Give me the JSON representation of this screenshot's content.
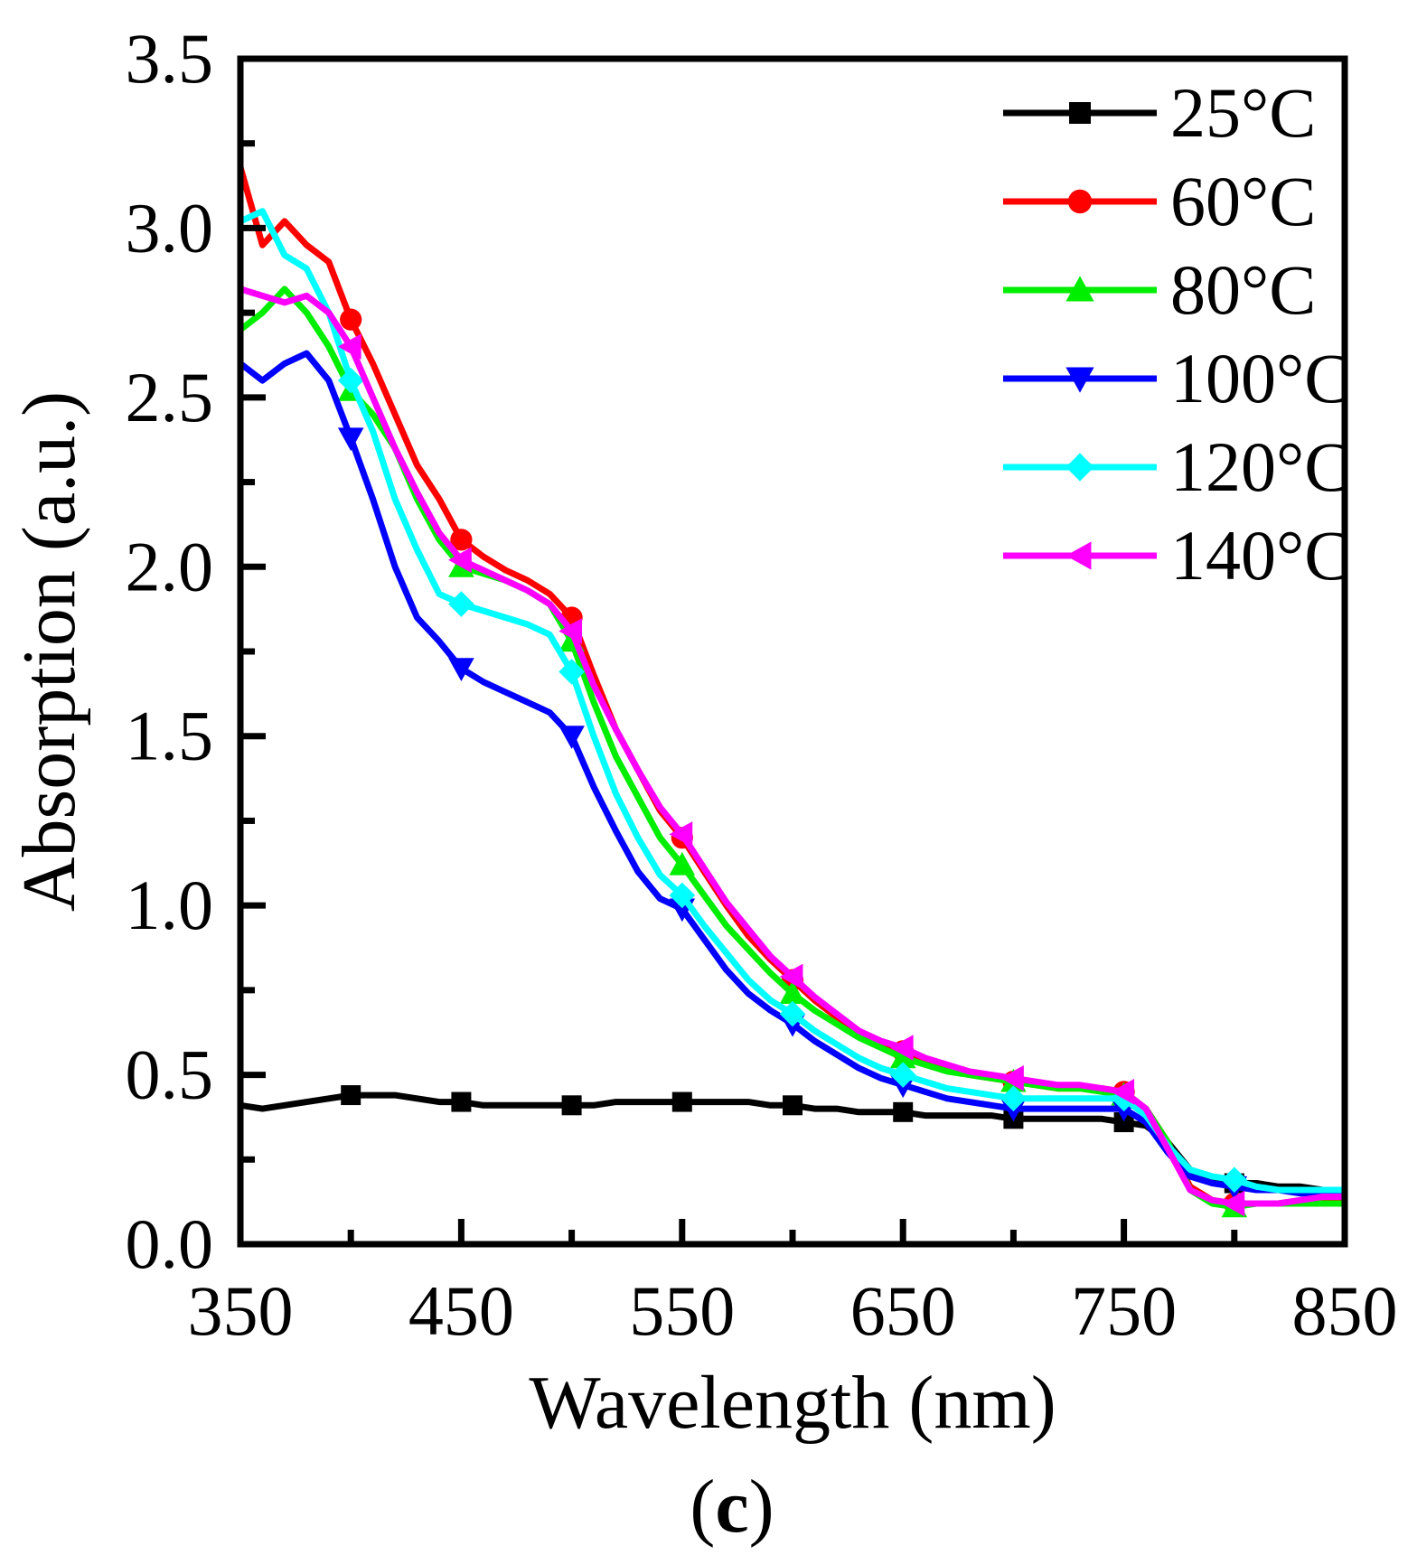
{
  "chart_data": {
    "type": "line",
    "title": "",
    "xlabel": "Wavelength (nm)",
    "ylabel": "Absorption (a.u.)",
    "panel_label": {
      "open": "(",
      "letter": "c",
      "close": ")"
    },
    "xlim": [
      350,
      850
    ],
    "ylim": [
      0,
      3.5
    ],
    "xticks": [
      "350",
      "450",
      "550",
      "650",
      "750",
      "850"
    ],
    "yticks": [
      "0.0",
      "0.5",
      "1.0",
      "1.5",
      "2.0",
      "2.5",
      "3.0",
      "3.5"
    ],
    "xtick_values": [
      350,
      450,
      550,
      650,
      750,
      850
    ],
    "ytick_values": [
      0,
      0.5,
      1.0,
      1.5,
      2.0,
      2.5,
      3.0,
      3.5
    ],
    "legend_position": "top-right",
    "x": [
      350,
      360,
      370,
      380,
      390,
      400,
      410,
      420,
      430,
      440,
      450,
      460,
      470,
      480,
      490,
      500,
      510,
      520,
      530,
      540,
      550,
      560,
      570,
      580,
      590,
      600,
      610,
      620,
      630,
      640,
      650,
      660,
      670,
      680,
      690,
      700,
      710,
      720,
      730,
      740,
      750,
      760,
      770,
      780,
      790,
      800,
      810,
      820,
      830,
      840,
      850
    ],
    "series": [
      {
        "name": "25°C",
        "color": "#000000",
        "marker": "square",
        "values": [
          0.41,
          0.4,
          0.41,
          0.42,
          0.43,
          0.44,
          0.44,
          0.44,
          0.43,
          0.42,
          0.42,
          0.41,
          0.41,
          0.41,
          0.41,
          0.41,
          0.41,
          0.42,
          0.42,
          0.42,
          0.42,
          0.42,
          0.42,
          0.42,
          0.41,
          0.41,
          0.4,
          0.4,
          0.39,
          0.39,
          0.39,
          0.38,
          0.38,
          0.38,
          0.38,
          0.37,
          0.37,
          0.37,
          0.37,
          0.37,
          0.36,
          0.35,
          0.3,
          0.22,
          0.19,
          0.18,
          0.18,
          0.17,
          0.17,
          0.16,
          0.16
        ]
      },
      {
        "name": "60°C",
        "color": "#ff0000",
        "marker": "circle",
        "values": [
          3.18,
          2.95,
          3.02,
          2.95,
          2.9,
          2.73,
          2.6,
          2.45,
          2.3,
          2.2,
          2.08,
          2.03,
          1.99,
          1.96,
          1.92,
          1.85,
          1.68,
          1.52,
          1.4,
          1.28,
          1.2,
          1.1,
          1.0,
          0.91,
          0.84,
          0.78,
          0.72,
          0.67,
          0.62,
          0.59,
          0.57,
          0.54,
          0.52,
          0.5,
          0.49,
          0.48,
          0.47,
          0.46,
          0.46,
          0.46,
          0.45,
          0.4,
          0.3,
          0.17,
          0.13,
          0.12,
          0.12,
          0.12,
          0.13,
          0.13,
          0.13
        ]
      },
      {
        "name": "80°C",
        "color": "#00ee00",
        "marker": "triangle-up",
        "values": [
          2.7,
          2.75,
          2.82,
          2.75,
          2.65,
          2.52,
          2.45,
          2.35,
          2.2,
          2.08,
          2.0,
          1.98,
          1.96,
          1.93,
          1.89,
          1.78,
          1.6,
          1.44,
          1.32,
          1.2,
          1.12,
          1.03,
          0.94,
          0.87,
          0.8,
          0.74,
          0.69,
          0.65,
          0.61,
          0.58,
          0.55,
          0.53,
          0.51,
          0.5,
          0.49,
          0.48,
          0.47,
          0.46,
          0.46,
          0.45,
          0.44,
          0.4,
          0.3,
          0.16,
          0.12,
          0.11,
          0.12,
          0.12,
          0.12,
          0.12,
          0.12
        ]
      },
      {
        "name": "100°C",
        "color": "#0000ff",
        "marker": "triangle-down",
        "values": [
          2.6,
          2.55,
          2.6,
          2.63,
          2.55,
          2.38,
          2.2,
          2.0,
          1.85,
          1.78,
          1.7,
          1.66,
          1.63,
          1.6,
          1.57,
          1.5,
          1.35,
          1.22,
          1.1,
          1.02,
          0.99,
          0.9,
          0.81,
          0.74,
          0.69,
          0.65,
          0.6,
          0.56,
          0.52,
          0.49,
          0.47,
          0.45,
          0.43,
          0.42,
          0.41,
          0.4,
          0.4,
          0.4,
          0.4,
          0.4,
          0.4,
          0.36,
          0.27,
          0.2,
          0.18,
          0.17,
          0.16,
          0.16,
          0.15,
          0.15,
          0.15
        ]
      },
      {
        "name": "120°C",
        "color": "#00ffff",
        "marker": "diamond",
        "values": [
          3.02,
          3.05,
          2.92,
          2.88,
          2.75,
          2.55,
          2.4,
          2.2,
          2.05,
          1.92,
          1.89,
          1.87,
          1.85,
          1.83,
          1.8,
          1.69,
          1.5,
          1.33,
          1.2,
          1.09,
          1.03,
          0.94,
          0.86,
          0.78,
          0.72,
          0.68,
          0.63,
          0.59,
          0.55,
          0.52,
          0.5,
          0.48,
          0.46,
          0.45,
          0.44,
          0.43,
          0.43,
          0.43,
          0.43,
          0.43,
          0.43,
          0.38,
          0.29,
          0.22,
          0.2,
          0.19,
          0.17,
          0.16,
          0.16,
          0.16,
          0.16
        ]
      },
      {
        "name": "140°C",
        "color": "#ff00ff",
        "marker": "triangle-left",
        "values": [
          2.82,
          2.8,
          2.78,
          2.8,
          2.75,
          2.65,
          2.5,
          2.35,
          2.22,
          2.1,
          2.02,
          1.99,
          1.96,
          1.93,
          1.89,
          1.81,
          1.65,
          1.52,
          1.4,
          1.29,
          1.21,
          1.11,
          1.01,
          0.93,
          0.85,
          0.79,
          0.73,
          0.68,
          0.63,
          0.6,
          0.58,
          0.55,
          0.53,
          0.51,
          0.5,
          0.49,
          0.48,
          0.47,
          0.47,
          0.46,
          0.45,
          0.4,
          0.28,
          0.16,
          0.13,
          0.12,
          0.12,
          0.12,
          0.13,
          0.14,
          0.14
        ]
      }
    ]
  }
}
